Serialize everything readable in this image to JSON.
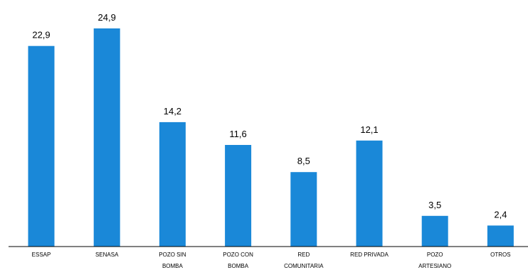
{
  "chart_data": {
    "type": "bar",
    "title": "",
    "xlabel": "",
    "ylabel": "",
    "categories": [
      [
        "ESSAP"
      ],
      [
        "SENASA"
      ],
      [
        "POZO SIN",
        "BOMBA"
      ],
      [
        "POZO CON",
        "BOMBA"
      ],
      [
        "RED",
        "COMUNITARIA"
      ],
      [
        "RED PRIVADA"
      ],
      [
        "POZO",
        "ARTESIANO"
      ],
      [
        "OTROS"
      ]
    ],
    "values": [
      22.9,
      24.9,
      14.2,
      11.6,
      8.5,
      12.1,
      3.5,
      2.4
    ],
    "value_labels": [
      "22,9",
      "24,9",
      "14,2",
      "11,6",
      "8,5",
      "12,1",
      "3,5",
      "2,4"
    ],
    "ylim": [
      0,
      24.9
    ],
    "grid": false,
    "legend": "none",
    "bar_color": "#1a88d8",
    "axis_color": "#000000"
  }
}
